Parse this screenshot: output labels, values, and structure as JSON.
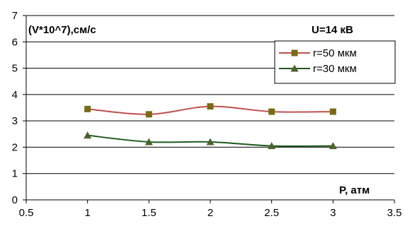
{
  "chart_data": {
    "type": "line",
    "ylabel": "(V*10^7),см/с",
    "xlabel": "P, атм",
    "annotation": "U=14 кВ",
    "x_ticks": [
      "0.5",
      "1",
      "1.5",
      "2",
      "2.5",
      "3",
      "3.5"
    ],
    "y_ticks": [
      "0",
      "1",
      "2",
      "3",
      "4",
      "5",
      "6",
      "7"
    ],
    "xlim": [
      0.5,
      3.5
    ],
    "ylim": [
      0,
      7
    ],
    "grid": "horizontal",
    "legend_position": "top-right",
    "x": [
      1,
      1.5,
      2,
      2.5,
      3
    ],
    "series": [
      {
        "name": "r=50 мкм",
        "color": "#c0504d",
        "marker_color": "#7a6a14",
        "marker": "square",
        "values": [
          3.45,
          3.25,
          3.55,
          3.35,
          3.35
        ]
      },
      {
        "name": "r=30 мкм",
        "color": "#1e5a1e",
        "marker_color": "#4f6228",
        "marker": "triangle",
        "values": [
          2.45,
          2.2,
          2.2,
          2.05,
          2.05
        ]
      }
    ]
  }
}
